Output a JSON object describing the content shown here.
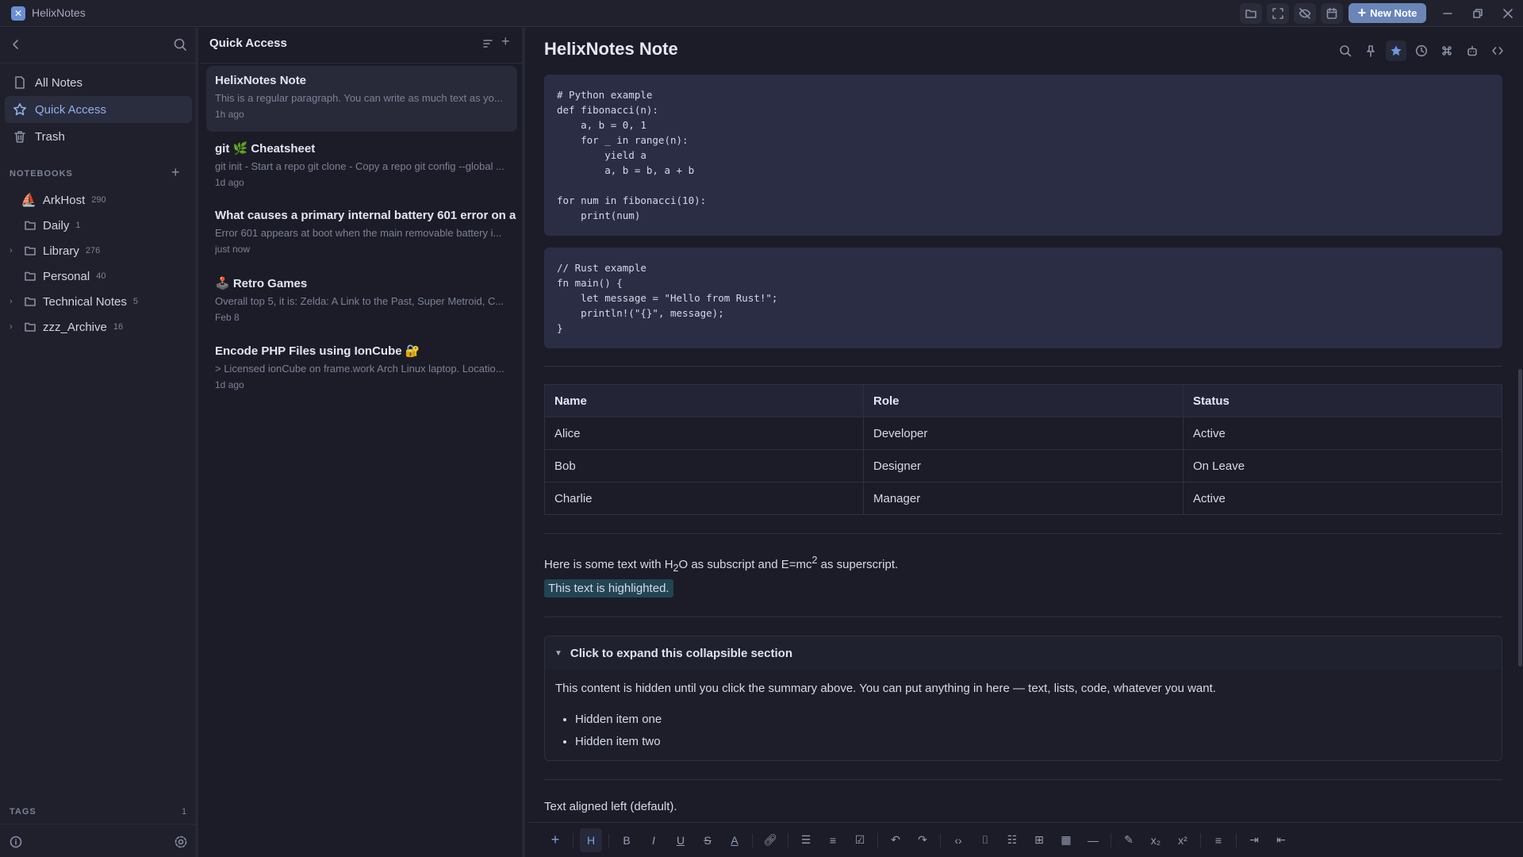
{
  "app": {
    "title": "HelixNotes",
    "logo": "✕",
    "new_note_label": "New Note",
    "accent": "#6a86b8"
  },
  "titlebar_icons": [
    "folder-icon",
    "fullscreen-icon",
    "eye-off-icon",
    "calendar-icon"
  ],
  "sidebar": {
    "nav": [
      {
        "label": "All Notes",
        "icon": "file-icon"
      },
      {
        "label": "Quick Access",
        "icon": "star-icon",
        "active": true
      },
      {
        "label": "Trash",
        "icon": "trash-icon"
      }
    ],
    "notebooks_label": "NOTEBOOKS",
    "notebooks": [
      {
        "name": "ArkHost",
        "count": "290",
        "icon": "sailboat-emoji",
        "glyph": "⛵",
        "expandable": false
      },
      {
        "name": "Daily",
        "count": "1",
        "expandable": false
      },
      {
        "name": "Library",
        "count": "276",
        "expandable": true
      },
      {
        "name": "Personal",
        "count": "40",
        "expandable": false
      },
      {
        "name": "Technical Notes",
        "count": "5",
        "expandable": true
      },
      {
        "name": "zzz_Archive",
        "count": "16",
        "expandable": true
      }
    ],
    "tags_label": "TAGS",
    "tags_count": "1"
  },
  "notelist": {
    "title": "Quick Access",
    "notes": [
      {
        "title": "HelixNotes Note",
        "preview": "This is a regular paragraph. You can write as much text as yo...",
        "date": "1h ago"
      },
      {
        "title": "git 🌿 Cheatsheet",
        "preview": "git init - Start a repo git clone - Copy a repo git config --global ...",
        "date": "1d ago"
      },
      {
        "title": "What causes a primary internal battery 601 error on a",
        "preview": "Error 601 appears at boot when the main removable battery i...",
        "date": "just now"
      },
      {
        "title": "🕹️ Retro Games",
        "preview": "Overall top 5, it is: Zelda: A Link to the Past, Super Metroid, C...",
        "date": "Feb 8"
      },
      {
        "title": "Encode PHP Files using IonCube 🔐",
        "preview": "> Licensed ionCube on frame.work Arch Linux laptop. Locatio...",
        "date": "1d ago"
      }
    ]
  },
  "editor": {
    "title": "HelixNotes Note",
    "header_icons": [
      "search-icon",
      "pin-icon",
      "star-icon",
      "clock-icon",
      "command-icon",
      "robot-icon",
      "code-icon"
    ],
    "code_python": "# Python example\ndef fibonacci(n):\n    a, b = 0, 1\n    for _ in range(n):\n        yield a\n        a, b = b, a + b\n\nfor num in fibonacci(10):\n    print(num)",
    "code_rust": "// Rust example\nfn main() {\n    let message = \"Hello from Rust!\";\n    println!(\"{}\", message);\n}",
    "table": {
      "headers": [
        "Name",
        "Role",
        "Status"
      ],
      "rows": [
        [
          "Alice",
          "Developer",
          "Active"
        ],
        [
          "Bob",
          "Designer",
          "On Leave"
        ],
        [
          "Charlie",
          "Manager",
          "Active"
        ]
      ]
    },
    "sub_sup": {
      "a": "Here is some text with H",
      "sub": "2",
      "b": "O as subscript and E=mc",
      "sup": "2",
      "c": " as superscript."
    },
    "highlight": "This text is highlighted.",
    "details": {
      "summary": "Click to expand this collapsible section",
      "body": "This content is hidden until you click the summary above. You can put anything in here — text, lists, code, whatever you want.",
      "items": [
        "Hidden item one",
        "Hidden item two"
      ]
    },
    "aligned_text": "Text aligned left (default)."
  },
  "toolbar": [
    "add",
    "heading",
    "bold",
    "italic",
    "underline",
    "strikethrough",
    "text-color",
    "link",
    "bullet-list",
    "ordered-list",
    "task-list",
    "undo",
    "redo",
    "inline-code",
    "code-block",
    "outline",
    "insert-block",
    "table",
    "horizontal-rule",
    "highlight",
    "subscript",
    "superscript",
    "align",
    "indent",
    "outdent"
  ]
}
